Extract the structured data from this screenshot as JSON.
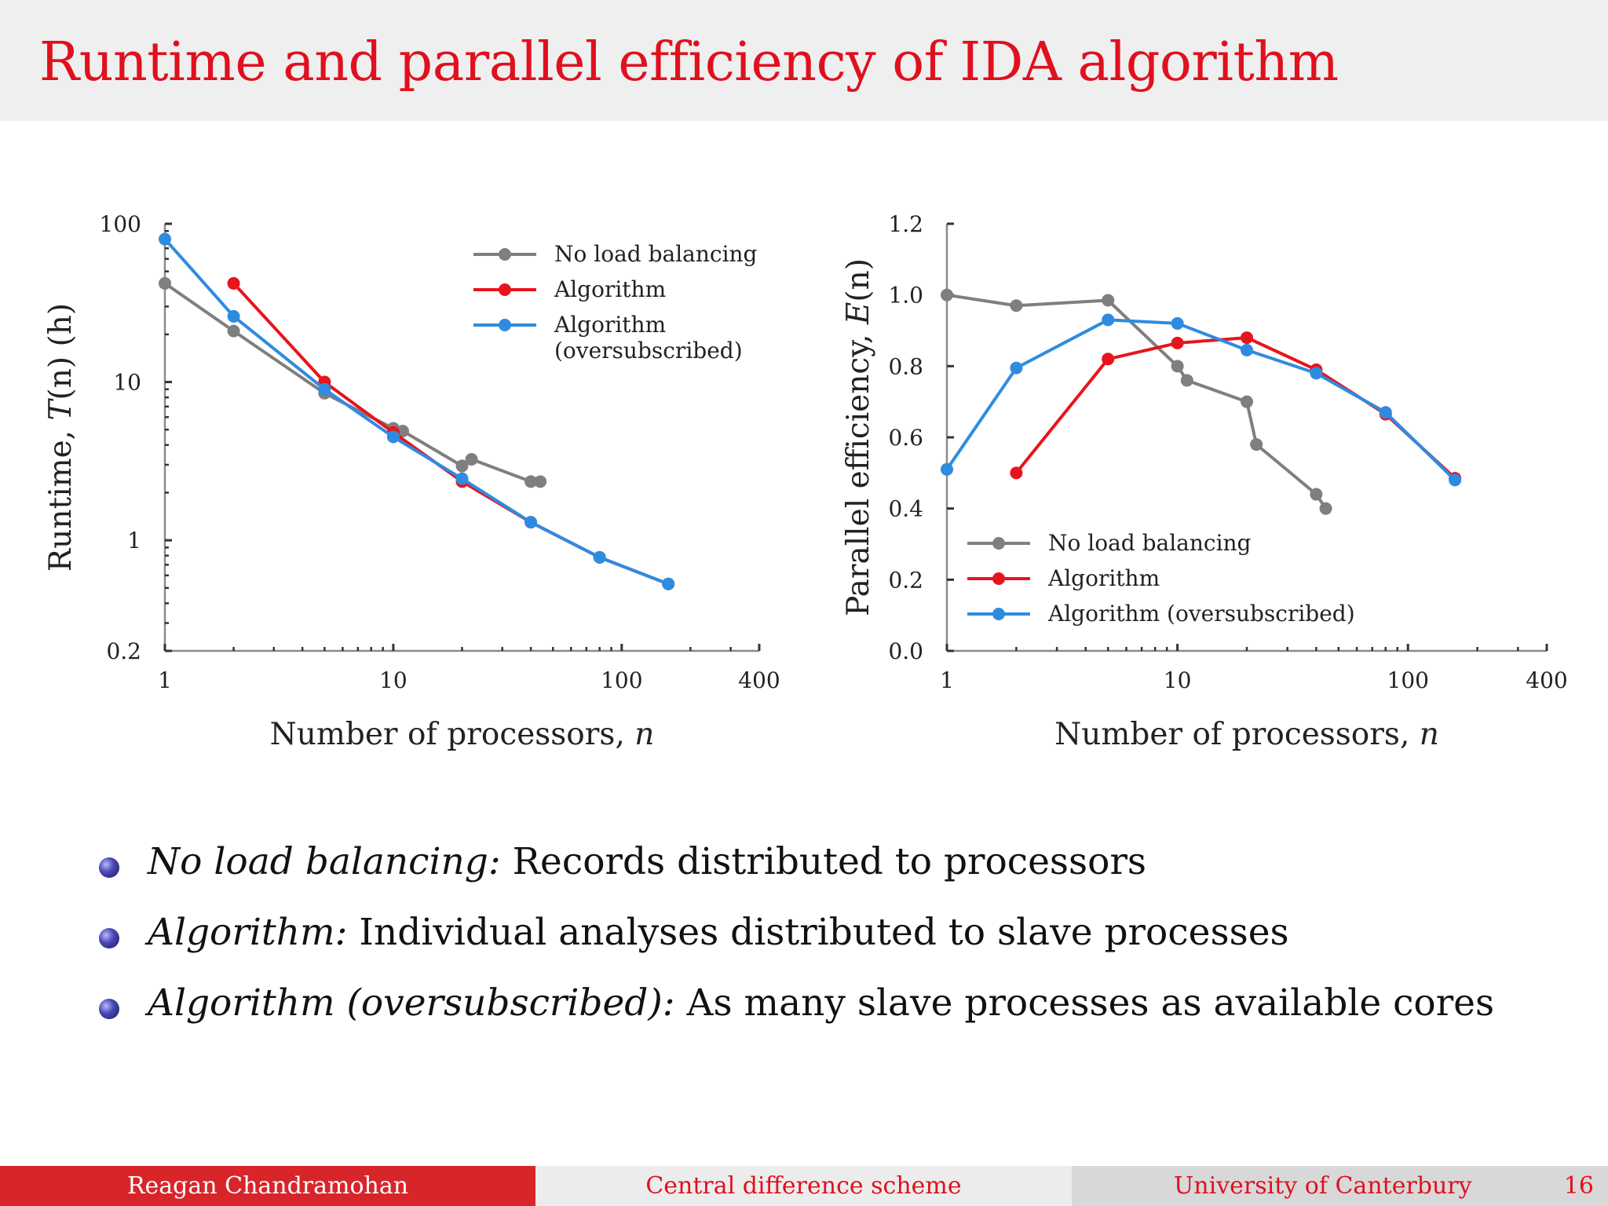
{
  "slide": {
    "title": "Runtime and parallel efficiency of IDA algorithm",
    "bullets": [
      {
        "label": "No load balancing:",
        "text": "Records distributed to processors"
      },
      {
        "label": "Algorithm:",
        "text": "Individual analyses distributed to slave processes"
      },
      {
        "label": "Algorithm (oversubscribed):",
        "text": "As many slave processes as available cores"
      }
    ],
    "footer": {
      "author": "Reagan Chandramohan",
      "section": "Central difference scheme",
      "institution": "University of Canterbury",
      "page": "16"
    }
  },
  "colors": {
    "title": "#e0101e",
    "no_load_balancing": "#7f7f7f",
    "algorithm": "#e8141c",
    "oversubscribed": "#2f8be0"
  },
  "chart_data": [
    {
      "type": "line",
      "xlabel_text": "Number of processors, ",
      "xlabel_var": "n",
      "ylabel_text": "Runtime, ",
      "ylabel_var": "T",
      "ylabel_suffix": "(n) (h)",
      "x_scale": "log",
      "y_scale": "log",
      "xlim": [
        1,
        400
      ],
      "ylim": [
        0.2,
        100
      ],
      "x_ticks": [
        1,
        10,
        100,
        400
      ],
      "x_tick_labels": [
        "1",
        "10",
        "100",
        "400"
      ],
      "y_ticks": [
        0.2,
        1,
        10,
        100
      ],
      "y_tick_labels": [
        "0.2",
        "1",
        "10",
        "100"
      ],
      "legend_position": "top-right",
      "series": [
        {
          "name": "No load balancing",
          "color": "#7f7f7f",
          "x": [
            1,
            2,
            5,
            10,
            11,
            20,
            22,
            40,
            44
          ],
          "y": [
            42,
            21,
            8.5,
            5.1,
            4.9,
            2.95,
            3.25,
            2.35,
            2.35
          ]
        },
        {
          "name": "Algorithm",
          "color": "#e8141c",
          "x": [
            2,
            5,
            10,
            20,
            40,
            80,
            160
          ],
          "y": [
            42,
            10,
            4.8,
            2.35,
            1.3,
            0.78,
            0.53
          ]
        },
        {
          "name": "Algorithm (oversubscribed)",
          "color": "#2f8be0",
          "x": [
            1,
            2,
            5,
            10,
            20,
            40,
            80,
            160
          ],
          "y": [
            80,
            26,
            9,
            4.5,
            2.45,
            1.3,
            0.78,
            0.53
          ]
        }
      ]
    },
    {
      "type": "line",
      "xlabel_text": "Number of processors, ",
      "xlabel_var": "n",
      "ylabel_text": "Parallel efficiency, ",
      "ylabel_var": "E",
      "ylabel_suffix": "(n)",
      "x_scale": "log",
      "y_scale": "linear",
      "xlim": [
        1,
        400
      ],
      "ylim": [
        0,
        1.2
      ],
      "x_ticks": [
        1,
        10,
        100,
        400
      ],
      "x_tick_labels": [
        "1",
        "10",
        "100",
        "400"
      ],
      "y_ticks": [
        0,
        0.2,
        0.4,
        0.6,
        0.8,
        1.0,
        1.2
      ],
      "y_tick_labels": [
        "0.0",
        "0.2",
        "0.4",
        "0.6",
        "0.8",
        "1.0",
        "1.2"
      ],
      "legend_position": "bottom-left",
      "series": [
        {
          "name": "No load balancing",
          "color": "#7f7f7f",
          "x": [
            1,
            2,
            5,
            10,
            11,
            20,
            22,
            40,
            44
          ],
          "y": [
            1.0,
            0.97,
            0.985,
            0.8,
            0.76,
            0.7,
            0.58,
            0.44,
            0.4
          ]
        },
        {
          "name": "Algorithm",
          "color": "#e8141c",
          "x": [
            2,
            5,
            10,
            20,
            40,
            80,
            160
          ],
          "y": [
            0.5,
            0.82,
            0.865,
            0.88,
            0.79,
            0.665,
            0.485
          ]
        },
        {
          "name": "Algorithm (oversubscribed)",
          "color": "#2f8be0",
          "x": [
            1,
            2,
            5,
            10,
            20,
            40,
            80,
            160
          ],
          "y": [
            0.51,
            0.795,
            0.93,
            0.92,
            0.845,
            0.78,
            0.67,
            0.48
          ]
        }
      ]
    }
  ]
}
